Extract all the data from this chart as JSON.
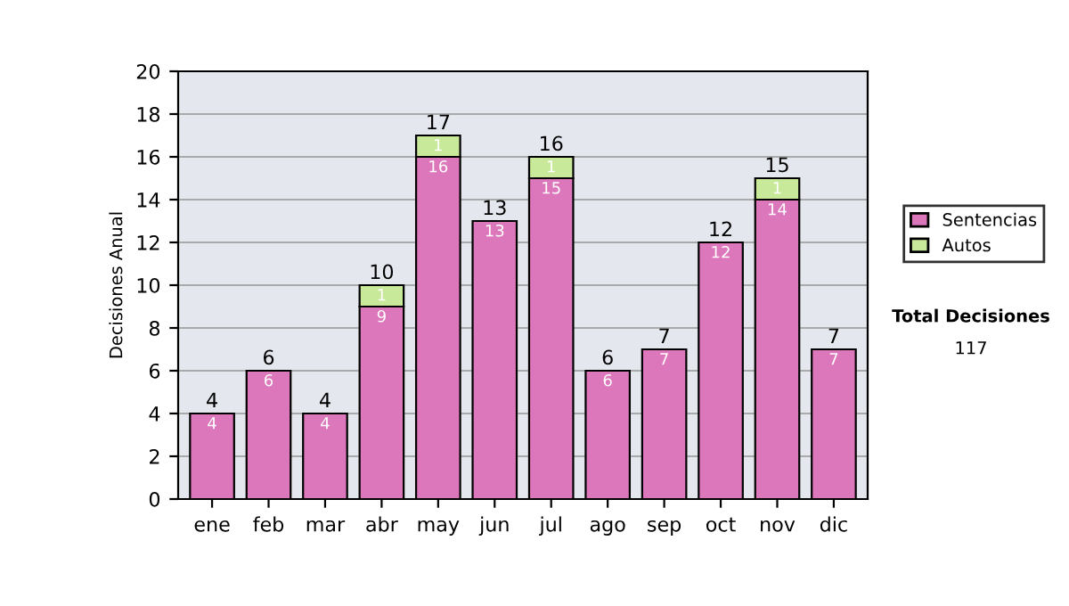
{
  "chart_data": {
    "type": "bar",
    "stacked": true,
    "ylabel": "Decisiones Anual",
    "categories": [
      "ene",
      "feb",
      "mar",
      "abr",
      "may",
      "jun",
      "jul",
      "ago",
      "sep",
      "oct",
      "nov",
      "dic"
    ],
    "series": [
      {
        "name": "Sentencias",
        "color": "#dd77bb",
        "values": [
          4,
          6,
          4,
          9,
          16,
          13,
          15,
          6,
          7,
          12,
          14,
          7
        ],
        "value_labels": [
          "4",
          "6",
          "4",
          "9",
          "16",
          "13",
          "15",
          "6",
          "7",
          "12",
          "14",
          "7"
        ]
      },
      {
        "name": "Autos",
        "color": "#c8e89a",
        "values": [
          null,
          null,
          null,
          1,
          1,
          null,
          1,
          null,
          null,
          null,
          1,
          null
        ],
        "value_labels": [
          null,
          null,
          null,
          "1",
          "1",
          null,
          "1",
          null,
          null,
          null,
          "1",
          null
        ]
      }
    ],
    "totals": [
      "4",
      "6",
      "4",
      "10",
      "17",
      "13",
      "16",
      "6",
      "7",
      "12",
      "15",
      "7"
    ],
    "ylim": [
      0,
      20
    ],
    "yticks": [
      0,
      2,
      4,
      6,
      8,
      10,
      12,
      14,
      16,
      18,
      20
    ],
    "grid": "y",
    "legend": "right",
    "annotations": [
      "Total Decisiones",
      "117"
    ]
  }
}
